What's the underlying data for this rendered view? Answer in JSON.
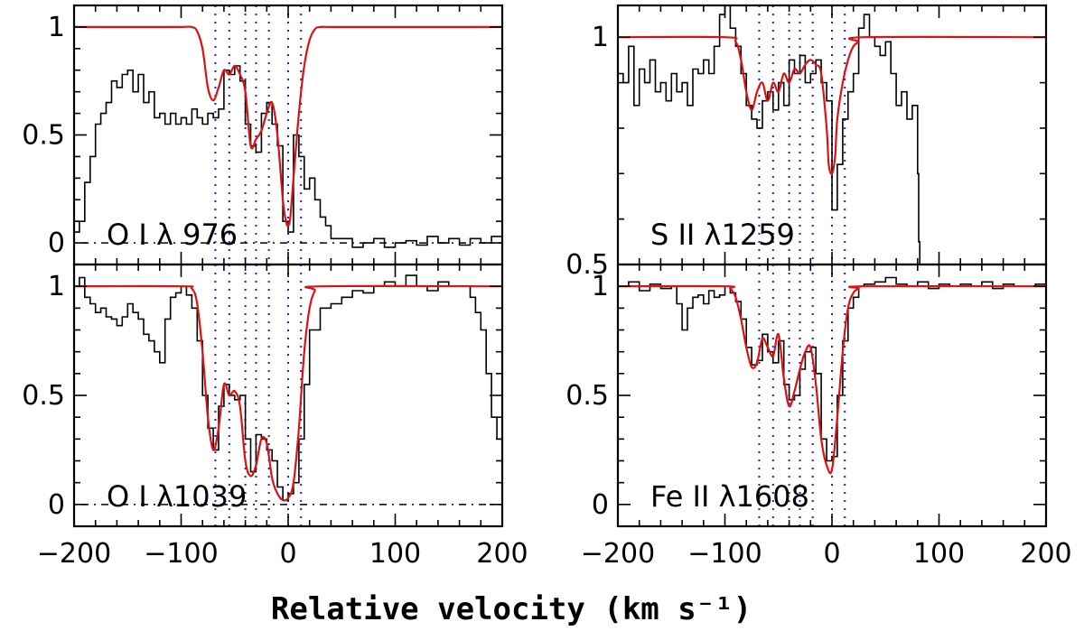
{
  "chart_data": [
    {
      "id": "p-oi976",
      "type": "line",
      "label": "O I λ 976",
      "xlim": [
        -200,
        200
      ],
      "ylim": [
        -0.1,
        1.1
      ],
      "yticks": [
        0,
        0.5,
        1
      ],
      "ytick_labels": [
        "0",
        "0.5",
        "1"
      ],
      "xticks": [
        -200,
        -100,
        0,
        100,
        200
      ],
      "xtick_labels": [],
      "continuum": 1,
      "zero_line": true,
      "series": [
        {
          "name": "data",
          "x": [
            -200,
            -195,
            -190,
            -185,
            -180,
            -175,
            -170,
            -165,
            -160,
            -155,
            -150,
            -145,
            -140,
            -135,
            -130,
            -125,
            -120,
            -115,
            -110,
            -105,
            -100,
            -95,
            -90,
            -85,
            -80,
            -75,
            -70,
            -65,
            -60,
            -55,
            -50,
            -45,
            -40,
            -35,
            -30,
            -25,
            -20,
            -15,
            -10,
            -5,
            0,
            5,
            10,
            15,
            20,
            25,
            30,
            35,
            40,
            50,
            60,
            70,
            80,
            90,
            100,
            110,
            120,
            130,
            140,
            150,
            160,
            170,
            180,
            190,
            200
          ],
          "y": [
            0.05,
            0.1,
            0.28,
            0.4,
            0.55,
            0.6,
            0.65,
            0.75,
            0.72,
            0.78,
            0.8,
            0.7,
            0.78,
            0.65,
            0.7,
            0.58,
            0.6,
            0.55,
            0.6,
            0.55,
            0.58,
            0.55,
            0.62,
            0.58,
            0.55,
            0.6,
            0.58,
            0.62,
            0.8,
            0.78,
            0.82,
            0.75,
            0.55,
            0.45,
            0.42,
            0.6,
            0.65,
            0.55,
            0.45,
            0.1,
            0.05,
            0.5,
            0.4,
            0.25,
            0.3,
            0.2,
            0.12,
            0.08,
            0.02,
            0.02,
            -0.02,
            0.0,
            0.02,
            -0.02,
            0.0,
            0.01,
            -0.01,
            0.03,
            0.0,
            0.02,
            -0.01,
            0.02,
            0.0,
            0.03,
            0.04
          ]
        },
        {
          "name": "fit",
          "x": [
            -200,
            -120,
            -100,
            -90,
            -85,
            -80,
            -75,
            -70,
            -65,
            -60,
            -55,
            -50,
            -45,
            -40,
            -35,
            -30,
            -25,
            -20,
            -15,
            -10,
            -5,
            -2,
            0,
            2,
            5,
            10,
            15,
            20,
            25,
            30,
            40,
            60,
            100,
            200
          ],
          "y": [
            1,
            1,
            1,
            1,
            0.98,
            0.9,
            0.72,
            0.66,
            0.72,
            0.8,
            0.78,
            0.82,
            0.78,
            0.7,
            0.45,
            0.48,
            0.52,
            0.6,
            0.65,
            0.5,
            0.2,
            0.1,
            0.08,
            0.12,
            0.3,
            0.6,
            0.82,
            0.94,
            0.99,
            1,
            1,
            1,
            1,
            1
          ]
        }
      ],
      "components": [
        -68,
        -55,
        -40,
        -30,
        -18,
        0,
        12
      ]
    },
    {
      "id": "p-sii1259",
      "type": "line",
      "label": "S II λ1259",
      "xlim": [
        -200,
        200
      ],
      "ylim": [
        0.5,
        1.07
      ],
      "yticks": [
        0.5,
        1
      ],
      "ytick_labels": [
        "0.5",
        "1"
      ],
      "xticks": [
        -200,
        -100,
        0,
        100,
        200
      ],
      "xtick_labels": [],
      "continuum": 1,
      "zero_line": false,
      "series": [
        {
          "name": "data",
          "x": [
            -200,
            -195,
            -190,
            -185,
            -180,
            -175,
            -170,
            -165,
            -160,
            -155,
            -150,
            -145,
            -140,
            -135,
            -130,
            -125,
            -120,
            -115,
            -110,
            -105,
            -100,
            -95,
            -90,
            -85,
            -80,
            -75,
            -70,
            -65,
            -60,
            -55,
            -50,
            -45,
            -40,
            -35,
            -30,
            -25,
            -20,
            -15,
            -10,
            -5,
            0,
            5,
            10,
            15,
            20,
            25,
            30,
            35,
            40,
            45,
            50,
            55,
            60,
            65,
            70,
            75,
            80,
            81,
            82
          ],
          "y": [
            0.92,
            0.9,
            0.98,
            0.85,
            0.93,
            0.9,
            0.95,
            0.88,
            0.9,
            0.86,
            0.92,
            0.88,
            0.9,
            0.85,
            0.93,
            0.92,
            0.95,
            0.92,
            0.98,
            1.05,
            1.08,
            1.02,
            0.98,
            0.92,
            0.85,
            0.82,
            0.8,
            0.86,
            0.88,
            0.84,
            0.9,
            0.85,
            0.95,
            0.92,
            0.96,
            0.9,
            0.92,
            0.95,
            0.9,
            0.86,
            0.62,
            0.72,
            0.82,
            0.88,
            0.92,
            1.02,
            1.05,
            1.0,
            0.98,
            0.96,
            0.99,
            0.92,
            0.85,
            0.88,
            0.82,
            0.85,
            0.7,
            0.55,
            0.5
          ]
        },
        {
          "name": "fit",
          "x": [
            -200,
            -100,
            -90,
            -85,
            -80,
            -75,
            -70,
            -65,
            -60,
            -55,
            -50,
            -45,
            -40,
            -35,
            -30,
            -25,
            -20,
            -15,
            -10,
            -5,
            -3,
            0,
            3,
            5,
            10,
            15,
            20,
            25,
            30,
            200
          ],
          "y": [
            1,
            1,
            0.99,
            0.95,
            0.88,
            0.84,
            0.88,
            0.9,
            0.86,
            0.9,
            0.88,
            0.92,
            0.9,
            0.93,
            0.92,
            0.94,
            0.95,
            0.94,
            0.92,
            0.8,
            0.72,
            0.7,
            0.74,
            0.82,
            0.9,
            0.95,
            0.98,
            0.99,
            1,
            1
          ]
        }
      ],
      "components": [
        -68,
        -55,
        -40,
        -30,
        -18,
        0,
        12
      ]
    },
    {
      "id": "p-oi1039",
      "type": "line",
      "label": "O I λ1039",
      "xlim": [
        -200,
        200
      ],
      "ylim": [
        -0.1,
        1.1
      ],
      "yticks": [
        0,
        0.5,
        1
      ],
      "ytick_labels": [
        "0",
        "0.5",
        "1"
      ],
      "xticks": [
        -200,
        -100,
        0,
        100,
        200
      ],
      "xtick_labels": [
        "−200",
        "−100",
        "0",
        "100",
        "200"
      ],
      "continuum": 1,
      "zero_line": true,
      "series": [
        {
          "name": "data",
          "x": [
            -200,
            -195,
            -190,
            -185,
            -180,
            -175,
            -170,
            -165,
            -160,
            -155,
            -150,
            -145,
            -140,
            -135,
            -130,
            -125,
            -120,
            -115,
            -110,
            -105,
            -100,
            -95,
            -90,
            -85,
            -80,
            -75,
            -70,
            -65,
            -60,
            -55,
            -50,
            -45,
            -40,
            -35,
            -30,
            -25,
            -20,
            -15,
            -10,
            -5,
            0,
            5,
            10,
            15,
            20,
            30,
            40,
            50,
            60,
            70,
            80,
            90,
            100,
            110,
            120,
            130,
            140,
            150,
            160,
            170,
            175,
            180,
            185,
            190,
            195,
            200
          ],
          "y": [
            1.0,
            1.04,
            0.95,
            0.92,
            0.88,
            0.9,
            0.86,
            0.85,
            0.82,
            0.86,
            0.92,
            0.88,
            0.85,
            0.78,
            0.75,
            0.7,
            0.65,
            0.85,
            0.95,
            0.97,
            1.0,
            0.96,
            0.9,
            0.75,
            0.5,
            0.35,
            0.25,
            0.45,
            0.55,
            0.5,
            0.48,
            0.5,
            0.3,
            0.15,
            0.32,
            0.3,
            0.25,
            0.2,
            0.08,
            0.02,
            0.05,
            0.1,
            0.3,
            0.55,
            0.8,
            0.9,
            0.92,
            0.95,
            0.98,
            0.97,
            1.0,
            1.02,
            1.0,
            1.05,
            1.0,
            0.98,
            1.02,
            1.0,
            1.0,
            0.95,
            0.88,
            0.8,
            0.6,
            0.4,
            0.3,
            0.18
          ]
        },
        {
          "name": "fit",
          "x": [
            -200,
            -100,
            -90,
            -85,
            -80,
            -75,
            -70,
            -65,
            -60,
            -55,
            -50,
            -45,
            -40,
            -35,
            -30,
            -25,
            -20,
            -15,
            -10,
            -5,
            0,
            5,
            10,
            15,
            20,
            25,
            30,
            200
          ],
          "y": [
            1,
            1,
            0.99,
            0.92,
            0.7,
            0.4,
            0.25,
            0.35,
            0.55,
            0.5,
            0.52,
            0.45,
            0.2,
            0.13,
            0.18,
            0.3,
            0.28,
            0.12,
            0.05,
            0.02,
            0.03,
            0.1,
            0.35,
            0.7,
            0.9,
            0.98,
            1,
            1
          ]
        }
      ],
      "components": [
        -68,
        -55,
        -40,
        -30,
        -18,
        0,
        12
      ]
    },
    {
      "id": "p-feii1608",
      "type": "line",
      "label": "Fe II λ1608",
      "xlim": [
        -200,
        200
      ],
      "ylim": [
        -0.1,
        1.1
      ],
      "yticks": [
        0,
        0.5,
        1
      ],
      "ytick_labels": [
        "0",
        "0.5",
        "1"
      ],
      "xticks": [
        -200,
        -100,
        0,
        100,
        200
      ],
      "xtick_labels": [
        "−200",
        "−100",
        "0",
        "100",
        "200"
      ],
      "continuum": 1,
      "zero_line": false,
      "series": [
        {
          "name": "data",
          "x": [
            -200,
            -190,
            -180,
            -170,
            -160,
            -150,
            -145,
            -140,
            -135,
            -130,
            -125,
            -120,
            -115,
            -110,
            -105,
            -100,
            -95,
            -90,
            -85,
            -80,
            -75,
            -70,
            -65,
            -60,
            -55,
            -50,
            -45,
            -40,
            -35,
            -30,
            -25,
            -20,
            -15,
            -10,
            -5,
            0,
            5,
            10,
            15,
            20,
            25,
            30,
            40,
            50,
            60,
            70,
            80,
            90,
            100,
            110,
            120,
            130,
            140,
            150,
            160,
            170,
            180,
            190,
            200
          ],
          "y": [
            1.0,
            1.02,
            0.98,
            1.01,
            0.99,
            1.0,
            0.92,
            0.8,
            0.9,
            0.95,
            0.96,
            0.92,
            0.98,
            0.95,
            0.96,
            1.0,
            0.97,
            0.93,
            0.85,
            0.72,
            0.64,
            0.66,
            0.78,
            0.7,
            0.65,
            0.75,
            0.55,
            0.48,
            0.5,
            0.62,
            0.7,
            0.72,
            0.6,
            0.3,
            0.2,
            0.22,
            0.5,
            0.75,
            0.9,
            0.95,
            1.0,
            1.01,
            1.02,
            1.04,
            1.01,
            1.0,
            1.02,
            0.99,
            1.01,
            1.0,
            1.01,
            1.0,
            1.02,
            0.99,
            1.01,
            1.0,
            1.0,
            1.01,
            1.0
          ]
        },
        {
          "name": "fit",
          "x": [
            -200,
            -100,
            -95,
            -90,
            -85,
            -80,
            -75,
            -70,
            -65,
            -60,
            -55,
            -50,
            -45,
            -40,
            -35,
            -30,
            -25,
            -20,
            -15,
            -10,
            -5,
            0,
            5,
            10,
            15,
            20,
            25,
            30,
            200
          ],
          "y": [
            1,
            1,
            0.99,
            0.95,
            0.85,
            0.72,
            0.63,
            0.65,
            0.76,
            0.72,
            0.68,
            0.78,
            0.58,
            0.45,
            0.52,
            0.62,
            0.7,
            0.72,
            0.55,
            0.3,
            0.18,
            0.16,
            0.4,
            0.7,
            0.9,
            0.97,
            0.99,
            1,
            1
          ]
        }
      ],
      "components": [
        -68,
        -55,
        -40,
        -30,
        -18,
        0,
        12
      ]
    }
  ],
  "xlabel": "Relative velocity (km s⁻¹)",
  "colors": {
    "data": "#000000",
    "fit": "#e01010",
    "components": "#1a1aff"
  }
}
